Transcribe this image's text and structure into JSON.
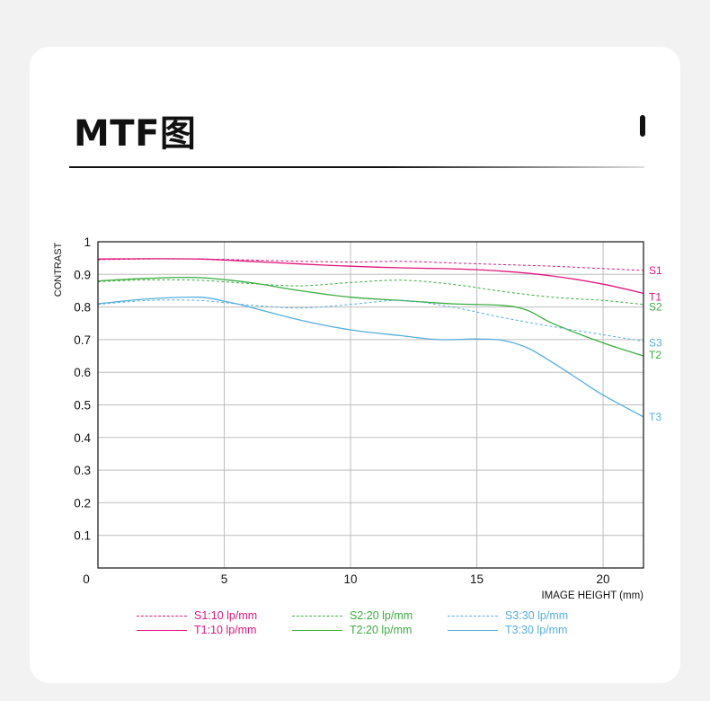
{
  "header": {
    "title": "MTF图"
  },
  "chart_data": {
    "type": "line",
    "title": "MTF图",
    "xlabel": "IMAGE HEIGHT  (mm)",
    "ylabel": "CONTRAST",
    "xlim": [
      0,
      21.6
    ],
    "ylim": [
      0,
      1
    ],
    "x_ticks": [
      "0",
      "5",
      "10",
      "15",
      "20"
    ],
    "y_ticks": [
      "1",
      "0.9",
      "0.8",
      "0.7",
      "0.6",
      "0.5",
      "0.4",
      "0.3",
      "0.2",
      "0.1"
    ],
    "grid": true,
    "colors": {
      "lp10": "#e0157d",
      "lp20": "#3aad3f",
      "lp30": "#55aedc",
      "grid": "#bdbdbd",
      "axis": "#111111"
    },
    "series": [
      {
        "name": "S1",
        "legend": "S1:10 lp/mm",
        "style": "dashed",
        "color": "#e0157d",
        "x": [
          0,
          2,
          4,
          6,
          8,
          10,
          12,
          14,
          16,
          18,
          20,
          21.6
        ],
        "y": [
          0.945,
          0.947,
          0.947,
          0.944,
          0.94,
          0.938,
          0.94,
          0.935,
          0.93,
          0.925,
          0.918,
          0.912
        ]
      },
      {
        "name": "T1",
        "legend": "T1:10 lp/mm",
        "style": "solid",
        "color": "#e0157d",
        "x": [
          0,
          2,
          4,
          6,
          8,
          10,
          12,
          14,
          16,
          18,
          20,
          21.6
        ],
        "y": [
          0.947,
          0.948,
          0.947,
          0.94,
          0.932,
          0.925,
          0.92,
          0.917,
          0.91,
          0.895,
          0.87,
          0.842
        ]
      },
      {
        "name": "S2",
        "legend": "S2:20 lp/mm",
        "style": "dashed",
        "color": "#3aad3f",
        "x": [
          0,
          2,
          4,
          6,
          8,
          10,
          12,
          14,
          16,
          18,
          20,
          21.6
        ],
        "y": [
          0.878,
          0.883,
          0.882,
          0.872,
          0.865,
          0.875,
          0.882,
          0.87,
          0.848,
          0.83,
          0.82,
          0.808
        ]
      },
      {
        "name": "T2",
        "legend": "T2:20 lp/mm",
        "style": "solid",
        "color": "#3aad3f",
        "x": [
          0,
          2,
          4,
          6,
          8,
          10,
          12,
          14,
          16,
          17,
          18,
          20,
          21.6
        ],
        "y": [
          0.88,
          0.888,
          0.89,
          0.875,
          0.85,
          0.83,
          0.82,
          0.81,
          0.805,
          0.79,
          0.75,
          0.69,
          0.65
        ]
      },
      {
        "name": "S3",
        "legend": "S3:30 lp/mm",
        "style": "dashed",
        "color": "#55aedc",
        "x": [
          0,
          2,
          4,
          6,
          8,
          10,
          12,
          14,
          16,
          18,
          20,
          21.6
        ],
        "y": [
          0.808,
          0.82,
          0.82,
          0.806,
          0.797,
          0.808,
          0.82,
          0.8,
          0.768,
          0.74,
          0.715,
          0.695
        ]
      },
      {
        "name": "T3",
        "legend": "T3:30 lp/mm",
        "style": "solid",
        "color": "#55aedc",
        "x": [
          0,
          2,
          4,
          5,
          6,
          8,
          10,
          12,
          13.5,
          15,
          16,
          17,
          18,
          19,
          20,
          21.6
        ],
        "y": [
          0.81,
          0.825,
          0.83,
          0.818,
          0.8,
          0.76,
          0.73,
          0.712,
          0.7,
          0.702,
          0.698,
          0.675,
          0.63,
          0.58,
          0.53,
          0.463
        ]
      }
    ]
  }
}
